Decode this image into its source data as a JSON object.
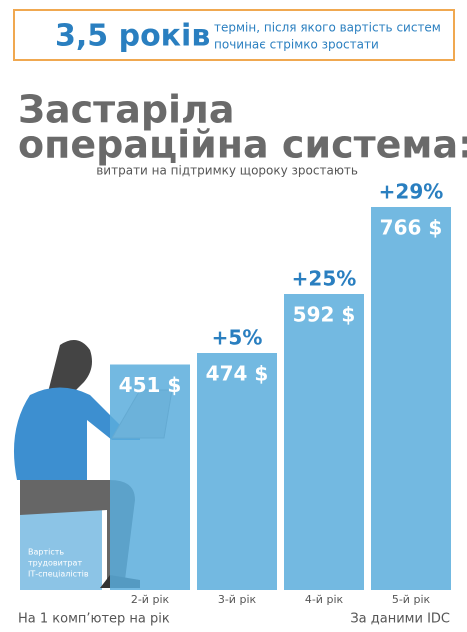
{
  "chart_data": {
    "type": "bar",
    "header": {
      "headline": "3,5 років",
      "text": [
        "термін, після якого вартість систем",
        "починає стрімко зростати"
      ]
    },
    "title": [
      "Застаріла",
      "операційна система:"
    ],
    "subtitle": "витрати на підтримку щороку зростають",
    "base_label": [
      "Вартість",
      "трудовитрат",
      "ІТ-спеціалістів"
    ],
    "categories": [
      "2-й рік",
      "3-й рік",
      "4-й рік",
      "5-й рік"
    ],
    "values": [
      451,
      474,
      592,
      766
    ],
    "value_labels": [
      "451 $",
      "474 $",
      "592 $",
      "766 $"
    ],
    "annotations": [
      "+5%",
      "+25%",
      "+29%"
    ],
    "color": "#5aaddc",
    "footer_left": "На 1 комп’ютер на рік",
    "footer_right": "За даними IDC"
  }
}
